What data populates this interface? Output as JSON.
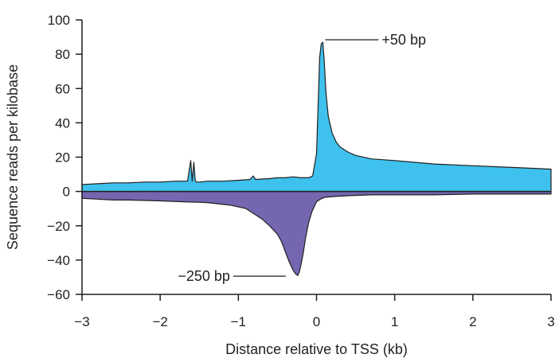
{
  "chart_data": {
    "type": "area",
    "xlabel": "Distance relative to TSS (kb)",
    "ylabel": "Sequence reads per kilobase",
    "xlim": [
      -3,
      3
    ],
    "ylim": [
      -60,
      100
    ],
    "x_ticks": [
      -3,
      -2,
      -1,
      0,
      1,
      2,
      3
    ],
    "x_tick_labels": [
      "−3",
      "−2",
      "−1",
      "0",
      "1",
      "2",
      "3"
    ],
    "y_ticks": [
      100,
      80,
      60,
      40,
      20,
      0,
      -20,
      -40,
      -60
    ],
    "y_tick_labels": [
      "100",
      "80",
      "60",
      "40",
      "20",
      "0",
      "−20",
      "−40",
      "−60"
    ],
    "grid": false,
    "colors": {
      "positive_fill": "#3ec1ec",
      "negative_fill": "#7566b0",
      "outline": "#231f20"
    },
    "series": [
      {
        "x": [
          -3.0,
          -2.8,
          -2.6,
          -2.4,
          -2.2,
          -2.0,
          -1.8,
          -1.65,
          -1.61,
          -1.59,
          -1.57,
          -1.55,
          -1.53,
          -1.51,
          -1.49,
          -1.4,
          -1.2,
          -1.0,
          -0.85,
          -0.81,
          -0.78,
          -0.6,
          -0.5,
          -0.4,
          -0.3,
          -0.2,
          -0.1,
          -0.05,
          0.0,
          0.02,
          0.04,
          0.06,
          0.08,
          0.1,
          0.12,
          0.15,
          0.2,
          0.25,
          0.3,
          0.4,
          0.5,
          0.7,
          1.0,
          1.5,
          2.0,
          2.5,
          3.0
        ],
        "values": [
          4,
          4.5,
          5,
          5,
          5.5,
          5.5,
          6,
          6,
          18,
          6,
          17,
          6,
          5.5,
          5.5,
          5.5,
          6,
          6,
          6.5,
          7,
          9,
          7,
          7.5,
          8,
          8,
          8.5,
          8,
          8,
          9,
          22,
          50,
          78,
          86,
          87,
          75,
          58,
          44,
          34,
          29,
          26,
          23,
          21,
          19,
          18,
          16,
          15,
          14,
          13
        ]
      },
      {
        "x": [
          -3.0,
          -2.8,
          -2.6,
          -2.4,
          -2.0,
          -1.7,
          -1.4,
          -1.1,
          -0.9,
          -0.8,
          -0.7,
          -0.6,
          -0.5,
          -0.45,
          -0.4,
          -0.35,
          -0.3,
          -0.27,
          -0.24,
          -0.22,
          -0.2,
          -0.17,
          -0.14,
          -0.1,
          -0.06,
          -0.02,
          0.0,
          0.05,
          0.1,
          0.2,
          0.4,
          0.7,
          1.0,
          1.5,
          2.0,
          2.5,
          3.0
        ],
        "values": [
          -4,
          -4.5,
          -5,
          -5,
          -5.5,
          -6,
          -6.5,
          -8,
          -10,
          -13,
          -16,
          -20,
          -25,
          -29,
          -35,
          -41,
          -46,
          -48,
          -49,
          -47,
          -43,
          -36,
          -27,
          -18,
          -12,
          -8,
          -6,
          -4.5,
          -3.5,
          -3,
          -2.5,
          -2,
          -2,
          -2,
          -1.5,
          -1.5,
          -1.5
        ]
      }
    ],
    "annotations": [
      {
        "text": "+50 bp",
        "x": 0.05,
        "y": 87
      },
      {
        "text": "−250 bp",
        "x": -0.25,
        "y": -48
      }
    ]
  }
}
